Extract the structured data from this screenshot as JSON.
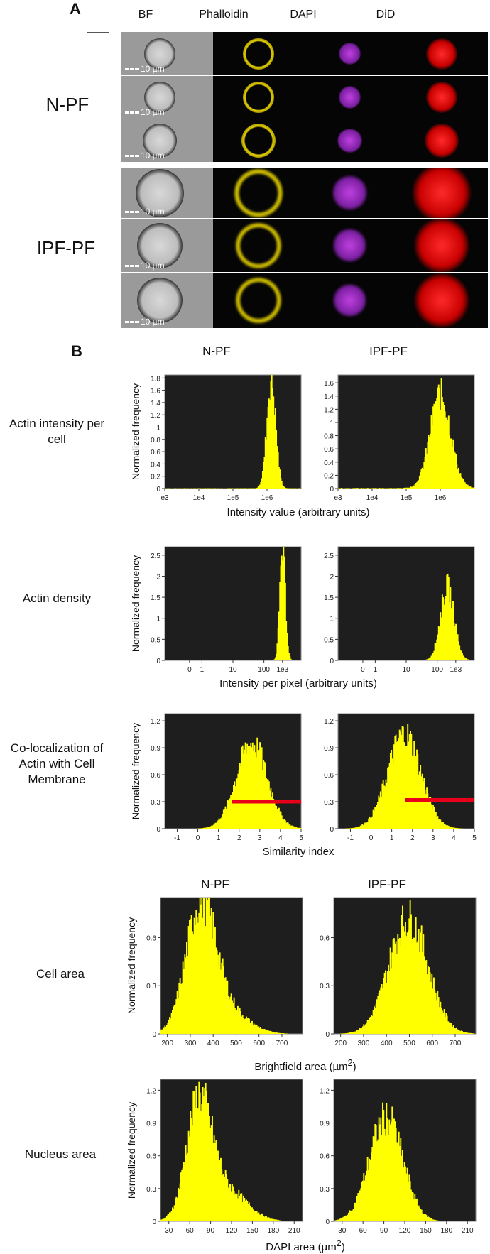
{
  "panel_a": {
    "letter": "A",
    "columns": [
      "BF",
      "Phalloidin",
      "DAPI",
      "DiD"
    ],
    "groups": [
      "N-PF",
      "IPF-PF"
    ],
    "scale_label": "10 µm"
  },
  "panel_b": {
    "letter": "B",
    "col_heads_top": [
      "N-PF",
      "IPF-PF"
    ],
    "col_heads_mid": [
      "N-PF",
      "IPF-PF"
    ],
    "row_labels": {
      "actin_intensity": "Actin intensity per cell",
      "actin_density": "Actin density",
      "colocalization": "Co-localization of Actin with Cell Membrane",
      "cell_area": "Cell area",
      "nucleus_area": "Nucleus area"
    },
    "axis_titles": {
      "intensity": "Intensity value (arbitrary units)",
      "density": "Intensity per pixel (arbitrary units)",
      "similarity": "Similarity index",
      "bf_area_prefix": "Brightfield area (",
      "bf_area_unit": "µm",
      "bf_area_sup": "2",
      "bf_area_suffix": ")",
      "dapi_area_prefix": "DAPI area (",
      "dapi_area_unit": "µm",
      "dapi_area_sup": "2",
      "dapi_area_suffix": ")"
    },
    "ylabel": "Normalized frequency"
  },
  "colors": {
    "hist": "#ffff00",
    "plot_bg": "#1e1e1e",
    "redline": "#e8001a"
  },
  "chart_data": [
    {
      "id": "int_npf",
      "type": "bar",
      "title": "N-PF",
      "xlabel": "Intensity value (arbitrary units)",
      "ylabel": "Normalized frequency",
      "xticks": [
        "e3",
        "1e4",
        "1e5",
        "1e6"
      ],
      "yticks": [
        "0",
        "0.2",
        "0.4",
        "0.6",
        "0.8",
        "1",
        "1.2",
        "1.4",
        "1.6",
        "1.8"
      ],
      "ylim": [
        0,
        1.85
      ],
      "xlim": [
        3,
        7
      ],
      "peaks": [
        {
          "mu": 6.12,
          "sigma": 0.13,
          "amp": 1.78
        }
      ],
      "floor": 0.006
    },
    {
      "id": "int_ipf",
      "type": "bar",
      "title": "IPF-PF",
      "xlabel": "Intensity value (arbitrary units)",
      "ylabel": "Normalized frequency",
      "xticks": [
        "e3",
        "1e4",
        "1e5",
        "1e6"
      ],
      "yticks": [
        "0",
        "0.2",
        "0.4",
        "0.6",
        "0.8",
        "1",
        "1.2",
        "1.4",
        "1.6"
      ],
      "ylim": [
        0,
        1.72
      ],
      "xlim": [
        3,
        7
      ],
      "peaks": [
        {
          "mu": 6.0,
          "sigma": 0.3,
          "amp": 1.42
        }
      ],
      "floor": 0.01
    },
    {
      "id": "den_npf",
      "type": "bar",
      "title": "N-PF",
      "xlabel": "Intensity per pixel (arbitrary units)",
      "ylabel": "Normalized frequency",
      "xticks": [
        "0",
        "1",
        "10",
        "100",
        "1e3"
      ],
      "yticks": [
        "0",
        "0.5",
        "1",
        "1.5",
        "2",
        "2.5"
      ],
      "ylim": [
        0,
        2.7
      ],
      "xlim": [
        -0.8,
        3.6
      ],
      "peaks": [
        {
          "mu": 3.0,
          "sigma": 0.09,
          "amp": 2.6
        }
      ],
      "floor": 0.004
    },
    {
      "id": "den_ipf",
      "type": "bar",
      "title": "IPF-PF",
      "xlabel": "Intensity per pixel (arbitrary units)",
      "ylabel": "Normalized frequency",
      "xticks": [
        "0",
        "1",
        "10",
        "100",
        "1e3"
      ],
      "yticks": [
        "0",
        "0.5",
        "1",
        "1.5",
        "2",
        "2.5"
      ],
      "ylim": [
        0,
        2.7
      ],
      "xlim": [
        -0.8,
        3.6
      ],
      "peaks": [
        {
          "mu": 2.72,
          "sigma": 0.22,
          "amp": 1.75
        }
      ],
      "floor": 0.01
    },
    {
      "id": "col_npf",
      "type": "bar",
      "title": "N-PF",
      "xlabel": "Similarity index",
      "ylabel": "Normalized frequency",
      "xticks": [
        "-1",
        "0",
        "1",
        "2",
        "3",
        "4",
        "5"
      ],
      "yticks": [
        "0",
        "0.3",
        "0.6",
        "0.9",
        "1.2"
      ],
      "ylim": [
        0,
        1.28
      ],
      "xlim": [
        -1.6,
        5
      ],
      "peaks": [
        {
          "mu": 2.6,
          "sigma": 0.75,
          "amp": 0.95
        }
      ],
      "floor": 0.0,
      "redline": {
        "x0": 1.65,
        "x1": 5,
        "y": 0.3
      }
    },
    {
      "id": "col_ipf",
      "type": "bar",
      "title": "IPF-PF",
      "xlabel": "Similarity index",
      "ylabel": "Normalized frequency",
      "xticks": [
        "-1",
        "0",
        "1",
        "2",
        "3",
        "4",
        "5"
      ],
      "yticks": [
        "0",
        "0.3",
        "0.6",
        "0.9",
        "1.2"
      ],
      "ylim": [
        0,
        1.28
      ],
      "xlim": [
        -1.6,
        5
      ],
      "peaks": [
        {
          "mu": 1.6,
          "sigma": 0.8,
          "amp": 1.05
        }
      ],
      "floor": 0.0,
      "redline": {
        "x0": 1.65,
        "x1": 5,
        "y": 0.32
      }
    },
    {
      "id": "cell_npf",
      "type": "bar",
      "title": "N-PF",
      "xlabel": "Brightfield area (µm²)",
      "ylabel": "Normalized frequency",
      "xticks": [
        "200",
        "300",
        "400",
        "500",
        "600",
        "700"
      ],
      "yticks": [
        "0",
        "0.3",
        "0.6"
      ],
      "ylim": [
        0,
        0.85
      ],
      "xlim": [
        170,
        790
      ],
      "peaks": [
        {
          "mu": 345,
          "sigma": 65,
          "amp": 0.78
        },
        {
          "mu": 460,
          "sigma": 90,
          "amp": 0.14
        }
      ],
      "floor": 0.0
    },
    {
      "id": "cell_ipf",
      "type": "bar",
      "title": "IPF-PF",
      "xlabel": "Brightfield area (µm²)",
      "ylabel": "Normalized frequency",
      "xticks": [
        "200",
        "300",
        "400",
        "500",
        "600",
        "700"
      ],
      "yticks": [
        "0",
        "0.3",
        "0.6"
      ],
      "ylim": [
        0,
        0.85
      ],
      "xlim": [
        170,
        790
      ],
      "peaks": [
        {
          "mu": 495,
          "sigma": 85,
          "amp": 0.72
        }
      ],
      "floor": 0.0
    },
    {
      "id": "nuc_npf",
      "type": "bar",
      "title": "N-PF",
      "xlabel": "DAPI area (µm²)",
      "ylabel": "Normalized frequency",
      "xticks": [
        "30",
        "60",
        "90",
        "120",
        "150",
        "180",
        "210"
      ],
      "yticks": [
        "0",
        "0.3",
        "0.6",
        "0.9",
        "1.2"
      ],
      "ylim": [
        0,
        1.3
      ],
      "xlim": [
        18,
        222
      ],
      "peaks": [
        {
          "mu": 73,
          "sigma": 18,
          "amp": 1.02
        },
        {
          "mu": 110,
          "sigma": 30,
          "amp": 0.3
        }
      ],
      "floor": 0.0
    },
    {
      "id": "nuc_ipf",
      "type": "bar",
      "title": "IPF-PF",
      "xlabel": "DAPI area (µm²)",
      "ylabel": "Normalized frequency",
      "xticks": [
        "30",
        "60",
        "90",
        "120",
        "150",
        "180",
        "210"
      ],
      "yticks": [
        "0",
        "0.3",
        "0.6",
        "0.9",
        "1.2"
      ],
      "ylim": [
        0,
        1.3
      ],
      "xlim": [
        18,
        222
      ],
      "peaks": [
        {
          "mu": 93,
          "sigma": 24,
          "amp": 0.95
        }
      ],
      "floor": 0.0
    }
  ]
}
